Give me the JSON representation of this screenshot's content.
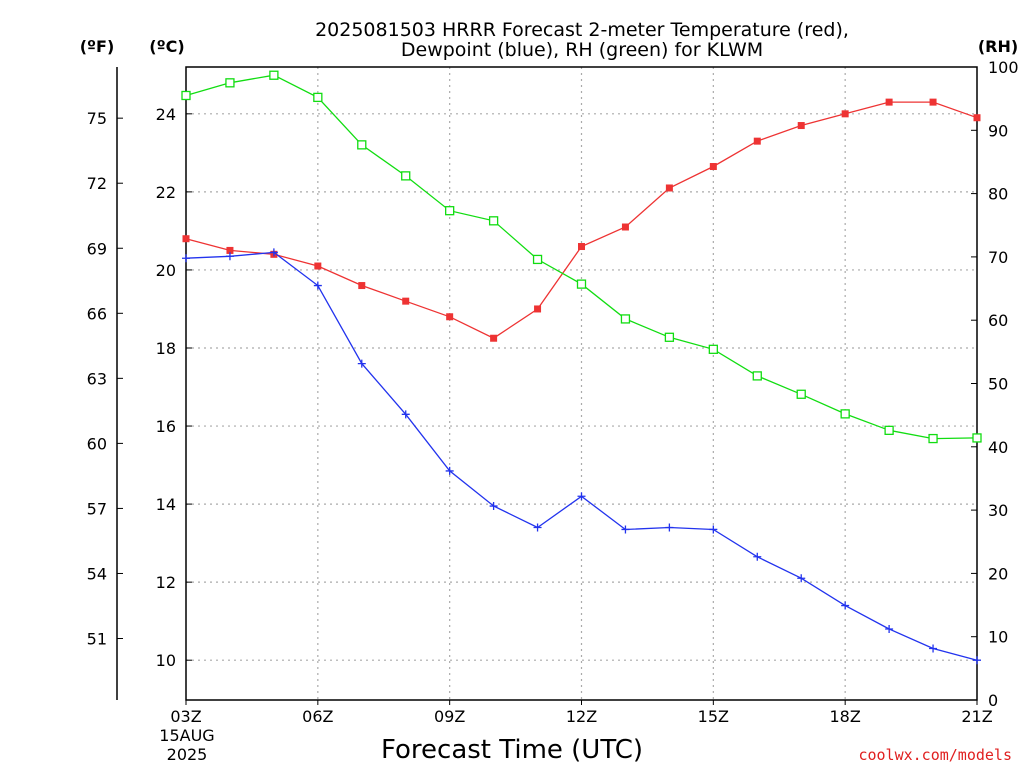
{
  "chart_data": {
    "type": "line",
    "title_line1": "2025081503 HRRR Forecast 2-meter Temperature (red),",
    "title_line2": "Dewpoint (blue), RH (green) for KLWM",
    "left_outer_unit": "(ºF)",
    "left_inner_unit": "(ºC)",
    "right_unit": "(RH)",
    "xlabel": "Forecast Time (UTC)",
    "watermark": "coolwx.com/models",
    "x_hours": [
      3,
      4,
      5,
      6,
      7,
      8,
      9,
      10,
      11,
      12,
      13,
      14,
      15,
      16,
      17,
      18,
      19,
      20,
      21
    ],
    "x_ticks": [
      {
        "hour": 3,
        "label": "03Z"
      },
      {
        "hour": 6,
        "label": "06Z"
      },
      {
        "hour": 9,
        "label": "09Z"
      },
      {
        "hour": 12,
        "label": "12Z"
      },
      {
        "hour": 15,
        "label": "15Z"
      },
      {
        "hour": 18,
        "label": "18Z"
      },
      {
        "hour": 21,
        "label": "21Z"
      }
    ],
    "date_line1": "15AUG",
    "date_line2": "2025",
    "celsius_ticks": [
      "10",
      "12",
      "14",
      "16",
      "18",
      "20",
      "22",
      "24"
    ],
    "fahrenheit_ticks": [
      "51",
      "54",
      "57",
      "60",
      "63",
      "66",
      "69",
      "72",
      "75"
    ],
    "rh_ticks": [
      "0",
      "10",
      "20",
      "30",
      "40",
      "50",
      "60",
      "70",
      "80",
      "90",
      "100"
    ],
    "ylim_celsius": [
      8.98,
      25.2
    ],
    "ylim_rh": [
      0,
      100
    ],
    "series": [
      {
        "name": "Temperature",
        "units": "C",
        "color": "#ee3333",
        "marker": "filled-square",
        "values": [
          20.8,
          20.5,
          20.4,
          20.1,
          19.6,
          19.2,
          18.8,
          18.25,
          19.0,
          20.6,
          21.1,
          22.1,
          22.65,
          23.3,
          23.7,
          24.0,
          24.3,
          24.3,
          23.9
        ]
      },
      {
        "name": "Dewpoint",
        "units": "C",
        "color": "#2233ee",
        "marker": "plus",
        "values": [
          20.3,
          20.35,
          20.45,
          19.6,
          17.6,
          16.3,
          14.85,
          13.95,
          13.4,
          14.2,
          13.35,
          13.4,
          13.35,
          12.65,
          12.1,
          11.4,
          10.8,
          10.3,
          10.0
        ]
      },
      {
        "name": "RH",
        "units": "%",
        "color": "#11dd11",
        "marker": "open-square",
        "values": [
          95.5,
          97.5,
          98.7,
          95.2,
          87.7,
          82.8,
          77.3,
          75.7,
          69.6,
          65.7,
          60.2,
          57.3,
          55.4,
          51.2,
          48.3,
          45.2,
          42.6,
          41.3,
          41.4
        ]
      }
    ],
    "grid": true
  }
}
